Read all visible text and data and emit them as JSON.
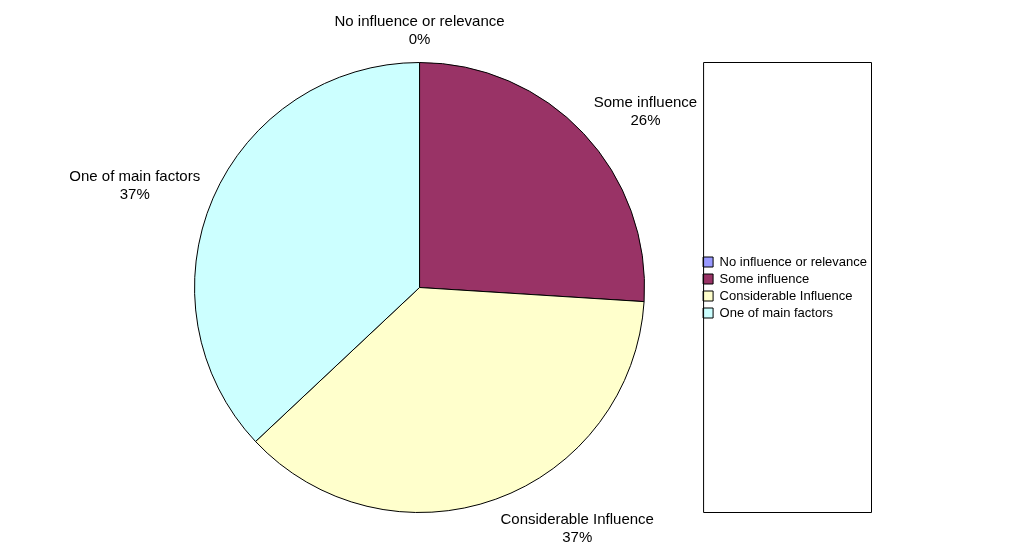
{
  "chart_data": {
    "type": "pie",
    "categories": [
      "No influence or relevance",
      "Some influence",
      "Considerable Influence",
      "One of main factors"
    ],
    "values": [
      0,
      26,
      37,
      37
    ],
    "colors": [
      "#9999ff",
      "#993366",
      "#ffffcc",
      "#ccffff"
    ],
    "value_labels": [
      "0%",
      "26%",
      "37%",
      "37%"
    ],
    "legend": "right"
  }
}
